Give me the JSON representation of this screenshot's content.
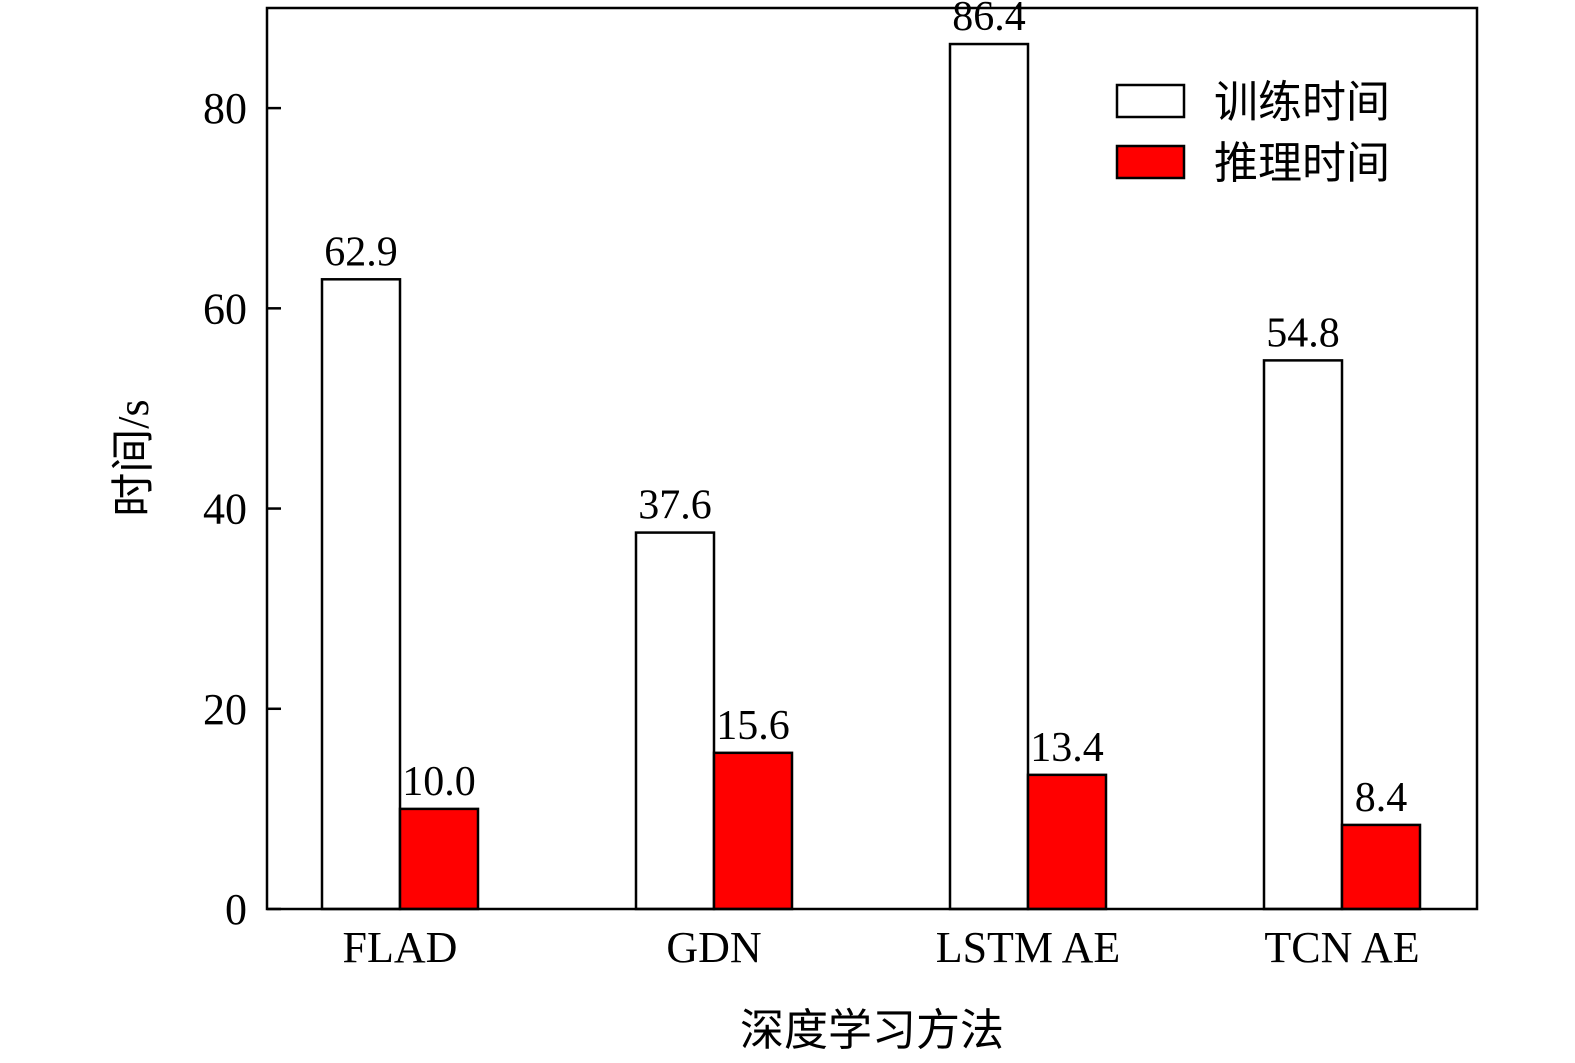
{
  "chart_data": {
    "type": "bar",
    "title": "",
    "xlabel": "深度学习方法",
    "ylabel": "时间/s",
    "categories": [
      "FLAD",
      "GDN",
      "LSTM AE",
      "TCN AE"
    ],
    "series": [
      {
        "name": "训练时间",
        "values": [
          62.9,
          37.6,
          86.4,
          54.8
        ],
        "color": "#ffffff",
        "value_labels": [
          "62.9",
          "37.6",
          "86.4",
          "54.8"
        ]
      },
      {
        "name": "推理时间",
        "values": [
          10.0,
          15.6,
          13.4,
          8.4
        ],
        "color": "#ff0000",
        "value_labels": [
          "10.0",
          "15.6",
          "13.4",
          "8.4"
        ]
      }
    ],
    "ylim": [
      0,
      90
    ],
    "yticks": [
      0,
      20,
      40,
      60,
      80
    ],
    "grid": false,
    "legend": "top-right",
    "edge_color": "#000000"
  }
}
